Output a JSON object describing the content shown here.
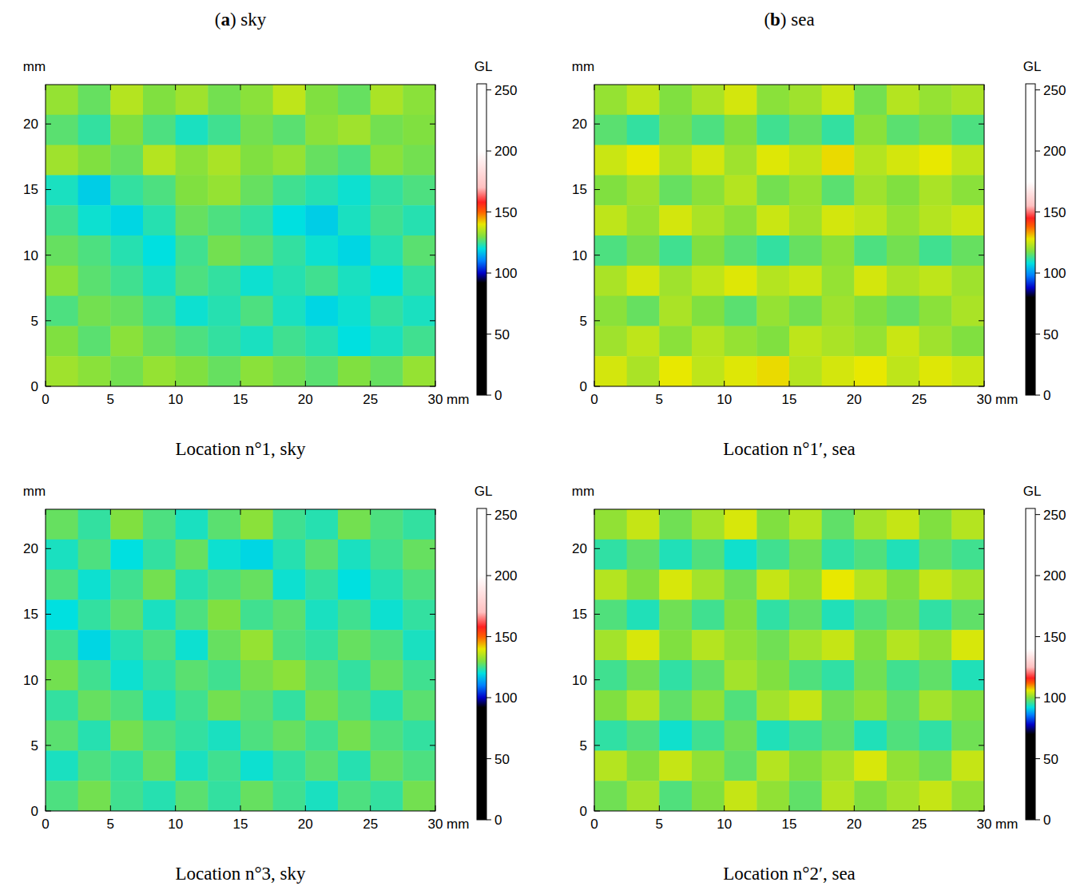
{
  "columns": [
    "(a) sky",
    "(b) sea"
  ],
  "chart_data": [
    {
      "type": "heatmap",
      "title": "Location n°1, sky",
      "x_label": "mm",
      "y_label": "mm",
      "xlim": [
        0,
        30
      ],
      "xticks": [
        0,
        5,
        10,
        15,
        20,
        25,
        30
      ],
      "ylim": [
        0,
        23
      ],
      "yticks": [
        0,
        5,
        10,
        15,
        20
      ],
      "cells": [
        [
          132,
          128,
          135,
          130,
          133,
          129,
          131,
          136,
          130,
          128,
          134,
          131
        ],
        [
          127,
          124,
          130,
          126,
          122,
          125,
          129,
          127,
          131,
          133,
          129,
          130
        ],
        [
          133,
          130,
          128,
          135,
          131,
          134,
          130,
          132,
          128,
          126,
          131,
          129
        ],
        [
          122,
          118,
          124,
          126,
          130,
          132,
          128,
          125,
          123,
          121,
          124,
          126
        ],
        [
          125,
          121,
          119,
          123,
          128,
          126,
          124,
          120,
          118,
          122,
          125,
          123
        ],
        [
          128,
          126,
          123,
          120,
          125,
          129,
          127,
          124,
          121,
          119,
          123,
          127
        ],
        [
          131,
          127,
          125,
          122,
          126,
          124,
          121,
          123,
          125,
          122,
          120,
          124
        ],
        [
          126,
          129,
          128,
          125,
          121,
          123,
          126,
          122,
          119,
          121,
          124,
          122
        ],
        [
          130,
          127,
          131,
          128,
          126,
          124,
          122,
          125,
          123,
          120,
          122,
          125
        ],
        [
          133,
          131,
          129,
          132,
          130,
          128,
          131,
          129,
          127,
          130,
          128,
          132
        ]
      ],
      "colorbar": {
        "label": "GL",
        "range": [
          0,
          255
        ],
        "ticks": [
          0,
          50,
          100,
          150,
          200,
          250
        ],
        "stops": [
          {
            "value": 0,
            "color": "#000000"
          },
          {
            "value": 92,
            "color": "#000000"
          },
          {
            "value": 100,
            "color": "#0000c8"
          },
          {
            "value": 110,
            "color": "#0080ff"
          },
          {
            "value": 120,
            "color": "#00e0e0"
          },
          {
            "value": 130,
            "color": "#80e040"
          },
          {
            "value": 140,
            "color": "#e8e800"
          },
          {
            "value": 150,
            "color": "#ff6000"
          },
          {
            "value": 158,
            "color": "#ff2020"
          },
          {
            "value": 170,
            "color": "#ffc0c0"
          },
          {
            "value": 200,
            "color": "#ffffff"
          },
          {
            "value": 255,
            "color": "#ffffff"
          }
        ]
      }
    },
    {
      "type": "heatmap",
      "title": "Location n°1′, sea",
      "x_label": "mm",
      "y_label": "mm",
      "xlim": [
        0,
        30
      ],
      "xticks": [
        0,
        5,
        10,
        15,
        20,
        25,
        30
      ],
      "ylim": [
        0,
        23
      ],
      "yticks": [
        0,
        5,
        10,
        15,
        20
      ],
      "cells": [
        [
          120,
          124,
          118,
          122,
          126,
          119,
          121,
          125,
          117,
          123,
          120,
          122
        ],
        [
          115,
          112,
          117,
          114,
          118,
          113,
          116,
          112,
          119,
          115,
          117,
          114
        ],
        [
          125,
          128,
          122,
          126,
          121,
          127,
          124,
          129,
          123,
          126,
          128,
          124
        ],
        [
          118,
          121,
          116,
          119,
          123,
          117,
          120,
          115,
          121,
          118,
          122,
          119
        ],
        [
          124,
          120,
          126,
          122,
          119,
          125,
          121,
          126,
          124,
          120,
          123,
          125
        ],
        [
          114,
          117,
          113,
          118,
          115,
          112,
          116,
          119,
          114,
          117,
          113,
          116
        ],
        [
          122,
          126,
          121,
          124,
          127,
          123,
          125,
          120,
          126,
          122,
          124,
          121
        ],
        [
          119,
          116,
          122,
          118,
          115,
          120,
          117,
          121,
          118,
          116,
          119,
          122
        ],
        [
          121,
          124,
          119,
          123,
          120,
          118,
          124,
          122,
          120,
          125,
          121,
          118
        ],
        [
          126,
          122,
          128,
          124,
          127,
          129,
          123,
          126,
          128,
          124,
          127,
          125
        ]
      ],
      "colorbar": {
        "label": "GL",
        "range": [
          0,
          255
        ],
        "ticks": [
          0,
          50,
          100,
          150,
          200,
          250
        ],
        "stops": [
          {
            "value": 0,
            "color": "#000000"
          },
          {
            "value": 80,
            "color": "#000000"
          },
          {
            "value": 88,
            "color": "#0000c8"
          },
          {
            "value": 98,
            "color": "#0080ff"
          },
          {
            "value": 108,
            "color": "#00e0e0"
          },
          {
            "value": 118,
            "color": "#80e040"
          },
          {
            "value": 128,
            "color": "#e8e800"
          },
          {
            "value": 138,
            "color": "#ff6000"
          },
          {
            "value": 145,
            "color": "#ff2020"
          },
          {
            "value": 155,
            "color": "#ffc0c0"
          },
          {
            "value": 175,
            "color": "#ffffff"
          },
          {
            "value": 255,
            "color": "#ffffff"
          }
        ]
      }
    },
    {
      "type": "heatmap",
      "title": "Location n°3, sky",
      "x_label": "mm",
      "y_label": "mm",
      "xlim": [
        0,
        30
      ],
      "xticks": [
        0,
        5,
        10,
        15,
        20,
        25,
        30
      ],
      "ylim": [
        0,
        23
      ],
      "yticks": [
        0,
        5,
        10,
        15,
        20
      ],
      "cells": [
        [
          128,
          124,
          130,
          126,
          122,
          127,
          131,
          125,
          123,
          129,
          126,
          124
        ],
        [
          122,
          126,
          120,
          124,
          128,
          121,
          119,
          123,
          127,
          122,
          125,
          128
        ],
        [
          126,
          121,
          125,
          129,
          123,
          126,
          128,
          121,
          124,
          120,
          123,
          126
        ],
        [
          120,
          124,
          127,
          122,
          126,
          130,
          125,
          127,
          122,
          125,
          121,
          124
        ],
        [
          125,
          119,
          123,
          126,
          121,
          128,
          132,
          126,
          124,
          128,
          126,
          122
        ],
        [
          129,
          125,
          121,
          124,
          127,
          125,
          129,
          131,
          127,
          124,
          128,
          125
        ],
        [
          124,
          128,
          126,
          122,
          125,
          129,
          127,
          124,
          129,
          126,
          123,
          127
        ],
        [
          127,
          123,
          129,
          126,
          124,
          122,
          126,
          128,
          125,
          129,
          126,
          124
        ],
        [
          122,
          126,
          124,
          128,
          122,
          125,
          121,
          124,
          127,
          123,
          128,
          126
        ],
        [
          126,
          129,
          125,
          123,
          127,
          124,
          128,
          125,
          122,
          126,
          124,
          129
        ]
      ],
      "colorbar": {
        "label": "GL",
        "range": [
          0,
          255
        ],
        "ticks": [
          0,
          50,
          100,
          150,
          200,
          250
        ],
        "stops": [
          {
            "value": 0,
            "color": "#000000"
          },
          {
            "value": 92,
            "color": "#000000"
          },
          {
            "value": 100,
            "color": "#0000c8"
          },
          {
            "value": 110,
            "color": "#0080ff"
          },
          {
            "value": 120,
            "color": "#00e0e0"
          },
          {
            "value": 130,
            "color": "#80e040"
          },
          {
            "value": 140,
            "color": "#e8e800"
          },
          {
            "value": 150,
            "color": "#ff6000"
          },
          {
            "value": 158,
            "color": "#ff2020"
          },
          {
            "value": 170,
            "color": "#ffc0c0"
          },
          {
            "value": 200,
            "color": "#ffffff"
          },
          {
            "value": 255,
            "color": "#ffffff"
          }
        ]
      }
    },
    {
      "type": "heatmap",
      "title": "Location n°2′, sea",
      "x_label": "mm",
      "y_label": "mm",
      "xlim": [
        0,
        30
      ],
      "xticks": [
        0,
        5,
        10,
        15,
        20,
        25,
        30
      ],
      "ylim": [
        0,
        23
      ],
      "yticks": [
        0,
        5,
        10,
        15,
        20
      ],
      "cells": [
        [
          101,
          104,
          99,
          102,
          105,
          100,
          103,
          98,
          102,
          104,
          100,
          103
        ],
        [
          95,
          98,
          94,
          97,
          93,
          96,
          99,
          95,
          97,
          94,
          98,
          96
        ],
        [
          103,
          100,
          105,
          102,
          99,
          104,
          101,
          106,
          103,
          100,
          104,
          102
        ],
        [
          97,
          94,
          99,
          96,
          100,
          95,
          98,
          94,
          97,
          99,
          95,
          98
        ],
        [
          102,
          105,
          100,
          103,
          101,
          99,
          102,
          104,
          100,
          103,
          101,
          105
        ],
        [
          96,
          99,
          95,
          98,
          102,
          100,
          97,
          95,
          99,
          96,
          98,
          94
        ],
        [
          100,
          103,
          98,
          101,
          97,
          102,
          104,
          99,
          101,
          98,
          102,
          100
        ],
        [
          95,
          97,
          93,
          96,
          99,
          94,
          96,
          98,
          94,
          97,
          95,
          99
        ],
        [
          103,
          100,
          104,
          101,
          98,
          103,
          100,
          102,
          105,
          101,
          99,
          104
        ],
        [
          99,
          102,
          97,
          100,
          104,
          101,
          98,
          103,
          100,
          102,
          104,
          101
        ]
      ],
      "colorbar": {
        "label": "GL",
        "range": [
          0,
          255
        ],
        "ticks": [
          0,
          50,
          100,
          150,
          200,
          250
        ],
        "stops": [
          {
            "value": 0,
            "color": "#000000"
          },
          {
            "value": 70,
            "color": "#000000"
          },
          {
            "value": 78,
            "color": "#0000c8"
          },
          {
            "value": 86,
            "color": "#0080ff"
          },
          {
            "value": 92,
            "color": "#00e0e0"
          },
          {
            "value": 100,
            "color": "#80e040"
          },
          {
            "value": 106,
            "color": "#e8e800"
          },
          {
            "value": 112,
            "color": "#ff6000"
          },
          {
            "value": 116,
            "color": "#ff2020"
          },
          {
            "value": 125,
            "color": "#ffc0c0"
          },
          {
            "value": 140,
            "color": "#ffffff"
          },
          {
            "value": 255,
            "color": "#ffffff"
          }
        ]
      }
    }
  ]
}
